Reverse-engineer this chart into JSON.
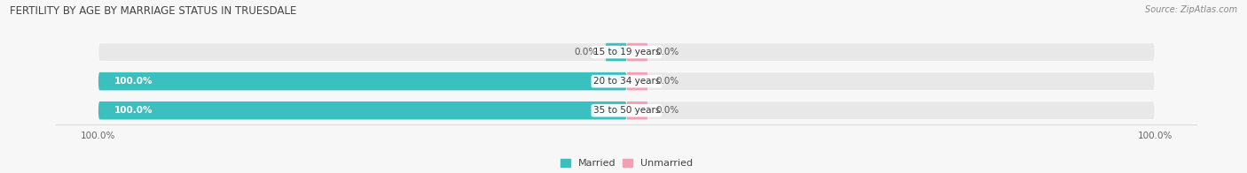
{
  "title": "FERTILITY BY AGE BY MARRIAGE STATUS IN TRUESDALE",
  "source": "Source: ZipAtlas.com",
  "categories": [
    "15 to 19 years",
    "20 to 34 years",
    "35 to 50 years"
  ],
  "married_values": [
    0.0,
    100.0,
    100.0
  ],
  "unmarried_values": [
    0.0,
    0.0,
    0.0
  ],
  "married_color": "#3bbfbf",
  "unmarried_color": "#f4a0b4",
  "bar_bg_color": "#e8e8e8",
  "small_segment_pct": 4.0,
  "bar_height": 0.62,
  "title_fontsize": 8.5,
  "label_fontsize": 7.5,
  "value_fontsize": 7.5,
  "tick_fontsize": 7.5,
  "legend_fontsize": 8,
  "source_fontsize": 7,
  "fig_bg_color": "#f7f7f7",
  "x_tick_labels_left": "100.0%",
  "x_tick_labels_right": "100.0%"
}
